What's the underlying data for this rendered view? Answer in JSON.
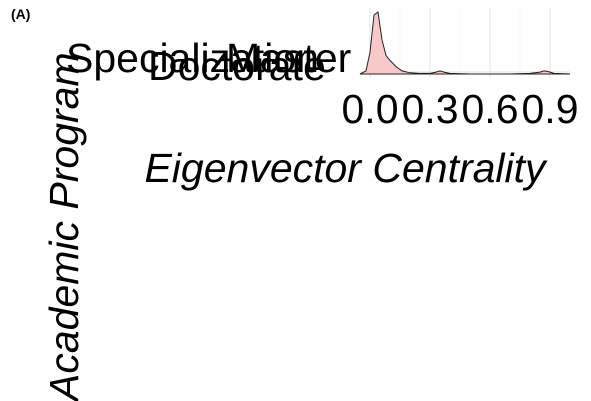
{
  "panel_label": "(A)",
  "chart_data": {
    "type": "ridgeline-density",
    "xlabel": "Eigenvector Centrality",
    "ylabel": "Academic Program",
    "categories": [
      "Doctorate",
      "Master",
      "Specialization"
    ],
    "x_ticks": [
      "0.0",
      "0.3",
      "0.6",
      "0.9"
    ],
    "x_tick_values": [
      0.0,
      0.3,
      0.6,
      0.9
    ],
    "xlim": [
      -0.05,
      1.0
    ],
    "fill_color": "#f8c0c0",
    "grid": "on",
    "series": [
      {
        "name": "Specialization",
        "x": [
          -0.05,
          -0.02,
          0.0,
          0.02,
          0.04,
          0.06,
          0.08,
          0.1,
          0.13,
          0.16,
          0.2,
          0.25,
          0.3,
          0.33,
          0.35,
          0.37,
          0.4,
          0.5,
          0.6,
          0.7,
          0.8,
          0.85,
          0.87,
          0.89,
          0.92,
          1.0
        ],
        "density": [
          0.0,
          0.05,
          0.35,
          0.95,
          1.0,
          0.55,
          0.3,
          0.22,
          0.12,
          0.05,
          0.02,
          0.01,
          0.01,
          0.03,
          0.05,
          0.03,
          0.01,
          0.0,
          0.0,
          0.0,
          0.01,
          0.03,
          0.05,
          0.04,
          0.01,
          0.0
        ]
      }
    ]
  }
}
